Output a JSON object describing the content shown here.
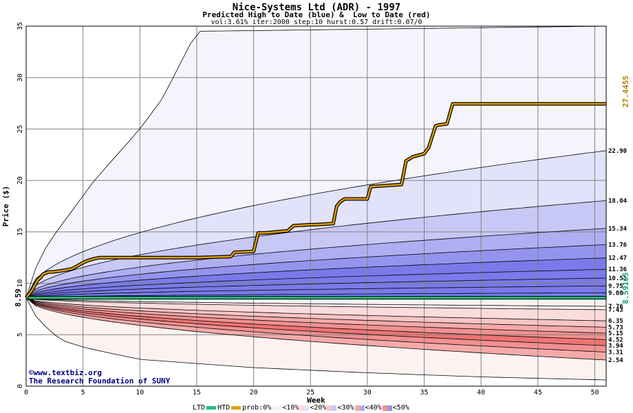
{
  "title": "Nice-Systems Ltd (ADR) - 1997",
  "subtitle": "Predicted High to Date (blue) &  Low to Date (red)",
  "params": "vol:3.61% iter:2000 step:10 hurst:0.57 drift:0.07/0",
  "credit_line1": "©www.textbiz.org",
  "credit_line2": "The Research Foundation of SUNY",
  "legend": {
    "ltd": "LTD",
    "htd": "HTD",
    "prob": "prob:0%",
    "p10": "<10%",
    "p20": "<20%",
    "p30": "<30%",
    "p40": "<40%",
    "p50": "<50%"
  },
  "colors": {
    "ltd": "#20c080",
    "htd": "#e0a000",
    "blue_bands": [
      "#f4f4fc",
      "#e2e2fa",
      "#c8c8f6",
      "#aeaef2",
      "#9494ee",
      "#7a7aea"
    ],
    "red_bands": [
      "#fdf2f2",
      "#fbdcdc",
      "#f8c4c4",
      "#f5aaaa",
      "#f29090",
      "#ee7474"
    ]
  },
  "chart_data": {
    "type": "area",
    "xlabel": "Week",
    "ylabel": "Price ($)",
    "xlim": [
      0,
      51
    ],
    "ylim": [
      0,
      35
    ],
    "x_ticks": [
      0,
      5,
      10,
      15,
      20,
      25,
      30,
      35,
      40,
      45,
      50
    ],
    "y_ticks": [
      0,
      5,
      10,
      15,
      20,
      25,
      30,
      35
    ],
    "start_price": 8.59,
    "start_label": "8.59",
    "ltd_value": 8.59165,
    "ltd_label": "8.59165",
    "htd_value": 27.4455,
    "htd_label": "27.4455",
    "upper_quantiles": [
      {
        "label": "22.90",
        "end": 22.9
      },
      {
        "label": "18.04",
        "end": 18.04
      },
      {
        "label": "15.34",
        "end": 15.34
      },
      {
        "label": "13.76",
        "end": 13.76
      },
      {
        "label": "12.47",
        "end": 12.47
      },
      {
        "label": "11.36",
        "end": 11.36
      },
      {
        "label": "10.51",
        "end": 10.51
      },
      {
        "label": "9.75",
        "end": 9.75
      },
      {
        "label": "9.08",
        "end": 9.08
      }
    ],
    "lower_quantiles": [
      {
        "label": "7.76",
        "end": 7.76
      },
      {
        "label": "7.43",
        "end": 7.43
      },
      {
        "label": "6.35",
        "end": 6.35
      },
      {
        "label": "5.73",
        "end": 5.73
      },
      {
        "label": "5.15",
        "end": 5.15
      },
      {
        "label": "4.52",
        "end": 4.52
      },
      {
        "label": "3.94",
        "end": 3.94
      },
      {
        "label": "3.31",
        "end": 3.31
      },
      {
        "label": "2.54",
        "end": 2.54
      }
    ],
    "outer_upper": {
      "x": [
        0,
        1,
        2,
        4,
        6,
        8,
        10,
        12,
        15,
        51
      ],
      "y": [
        8.59,
        12,
        14,
        17,
        20,
        22.5,
        25,
        28,
        34.5,
        35
      ]
    },
    "outer_lower": {
      "x": [
        0,
        1,
        3,
        5,
        7,
        10,
        15,
        20,
        30,
        40,
        51
      ],
      "y": [
        8.59,
        6.5,
        4.5,
        3.8,
        3.3,
        2.6,
        2.2,
        1.8,
        1.3,
        0.9,
        0.6
      ]
    },
    "htd_series": {
      "x": [
        0,
        0.5,
        1,
        1.3,
        1.5,
        2,
        2.3,
        3,
        4,
        4.2,
        5,
        5.4,
        6,
        6.5,
        10,
        15,
        18,
        18.3,
        20,
        20.4,
        21,
        23,
        23.5,
        25,
        25.4,
        27,
        27.3,
        27.6,
        28,
        30,
        30.3,
        33,
        33.4,
        34,
        35,
        35.4,
        36,
        36.3,
        37,
        37.5,
        51
      ],
      "y": [
        8.59,
        9.3,
        10.3,
        10.6,
        10.9,
        11.1,
        11.1,
        11.2,
        11.4,
        11.5,
        12.0,
        12.2,
        12.4,
        12.5,
        12.5,
        12.5,
        12.6,
        13.0,
        13.1,
        14.9,
        14.9,
        15.1,
        15.6,
        15.7,
        15.7,
        15.8,
        17.5,
        17.9,
        18.2,
        18.2,
        19.4,
        19.6,
        21.9,
        22.3,
        22.6,
        23.2,
        25.3,
        25.4,
        25.5,
        27.4455,
        27.4455
      ]
    }
  }
}
